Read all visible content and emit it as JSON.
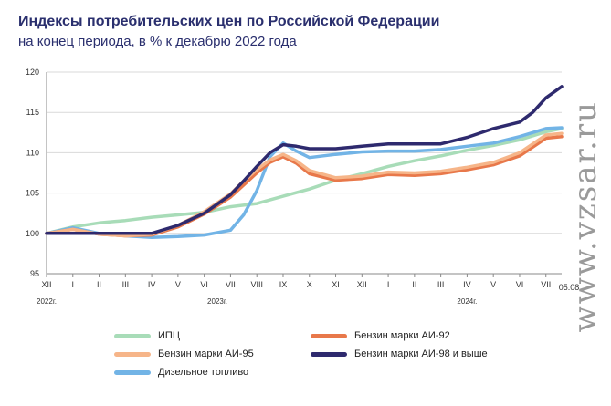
{
  "header": {
    "title": "Индексы потребительских цен по Российской Федерации",
    "subtitle": "на конец периода, в % к декабрю 2022 года"
  },
  "watermark": "www.vzsar.ru",
  "chart_data": {
    "type": "line",
    "categories": [
      "XII",
      "I",
      "II",
      "III",
      "IV",
      "V",
      "VI",
      "VII",
      "VIII",
      "IX",
      "X",
      "XI",
      "XII",
      "I",
      "II",
      "III",
      "IV",
      "V",
      "VI",
      "VII"
    ],
    "end_label": "05.08",
    "years": [
      {
        "label": "2022г.",
        "index": 0
      },
      {
        "label": "2023г.",
        "index": 6.5
      },
      {
        "label": "2024г.",
        "index": 16
      }
    ],
    "ylim": [
      95,
      120
    ],
    "yticks": [
      95,
      100,
      105,
      110,
      115,
      120
    ],
    "grid": "horizontal",
    "series": [
      {
        "name": "ИПЦ",
        "color": "#a8dcb8",
        "x": [
          0,
          1,
          2,
          3,
          4,
          5,
          6,
          7,
          8,
          9,
          10,
          11,
          12,
          13,
          14,
          15,
          16,
          17,
          18,
          19,
          19.6
        ],
        "values": [
          100,
          100.8,
          101.3,
          101.6,
          102.0,
          102.3,
          102.6,
          103.3,
          103.7,
          104.6,
          105.5,
          106.6,
          107.4,
          108.3,
          109.0,
          109.6,
          110.3,
          110.9,
          111.6,
          112.6,
          113.0
        ]
      },
      {
        "name": "Бензин марки АИ-92",
        "color": "#e8784a",
        "x": [
          0,
          1,
          2,
          3,
          4,
          5,
          6,
          7,
          7.5,
          8,
          8.5,
          9,
          9.5,
          10,
          11,
          12,
          13,
          14,
          15,
          16,
          17,
          18,
          19,
          19.6
        ],
        "values": [
          100,
          100.5,
          99.9,
          99.7,
          99.8,
          100.8,
          102.4,
          104.5,
          106,
          107.5,
          108.8,
          109.5,
          108.7,
          107.4,
          106.6,
          106.8,
          107.3,
          107.2,
          107.4,
          107.9,
          108.5,
          109.6,
          111.8,
          112.0
        ]
      },
      {
        "name": "Бензин марки АИ-95",
        "color": "#f6b589",
        "x": [
          0,
          1,
          2,
          3,
          4,
          5,
          6,
          7,
          7.5,
          8,
          8.5,
          9,
          9.5,
          10,
          11,
          12,
          13,
          14,
          15,
          16,
          17,
          18,
          19,
          19.6
        ],
        "values": [
          100,
          100.5,
          99.9,
          99.7,
          99.9,
          101.0,
          102.7,
          104.9,
          106.5,
          107.9,
          109.1,
          109.8,
          109.0,
          107.8,
          106.9,
          107.1,
          107.6,
          107.5,
          107.7,
          108.2,
          108.8,
          110.0,
          112.2,
          112.4
        ]
      },
      {
        "name": "Бензин марки АИ-98 и выше",
        "color": "#2e2a6e",
        "x": [
          0,
          1,
          2,
          3,
          4,
          5,
          6,
          7,
          7.5,
          8,
          8.5,
          9,
          9.5,
          10,
          11,
          12,
          13,
          14,
          15,
          16,
          17,
          18,
          18.5,
          19,
          19.6
        ],
        "values": [
          100,
          100,
          100,
          100,
          100,
          101,
          102.5,
          104.8,
          106.5,
          108.3,
          110.0,
          111.0,
          110.8,
          110.5,
          110.5,
          110.8,
          111.1,
          111.1,
          111.1,
          111.9,
          113.0,
          113.8,
          115.0,
          116.8,
          118.2
        ]
      },
      {
        "name": "Дизельное топливо",
        "color": "#72b4e6",
        "x": [
          0,
          1,
          2,
          3,
          4,
          5,
          6,
          7,
          7.5,
          8,
          8.5,
          9,
          9.5,
          10,
          11,
          12,
          13,
          14,
          15,
          16,
          17,
          18,
          19,
          19.6
        ],
        "values": [
          100,
          100.7,
          100,
          99.7,
          99.5,
          99.6,
          99.8,
          100.4,
          102.3,
          105.3,
          109.5,
          111.2,
          110.2,
          109.4,
          109.8,
          110.1,
          110.2,
          110.2,
          110.4,
          110.8,
          111.2,
          112.0,
          113.0,
          113.1
        ]
      }
    ]
  }
}
